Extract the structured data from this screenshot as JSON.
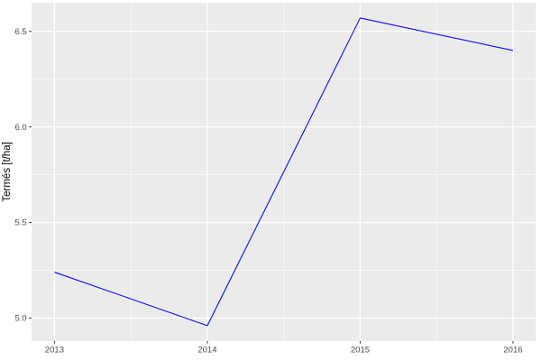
{
  "chart_data": {
    "type": "line",
    "style": "ggplot2",
    "title": "",
    "xlabel": "",
    "ylabel": "Termés [t/ha]",
    "x": [
      2013,
      2014,
      2015,
      2016
    ],
    "series": [
      {
        "name": "Termés",
        "values": [
          5.24,
          4.96,
          6.57,
          6.4
        ]
      }
    ],
    "xlim": [
      2012.85,
      2016.15
    ],
    "ylim": [
      4.88,
      6.65
    ],
    "xticks": {
      "values": [
        2013,
        2014,
        2015,
        2016
      ],
      "labels": [
        "2013",
        "2014",
        "2015",
        "2016"
      ]
    },
    "yticks": {
      "values": [
        5.0,
        5.5,
        6.0,
        6.5
      ],
      "labels": [
        "5.0",
        "5.5",
        "6.0",
        "6.5"
      ]
    },
    "grid": "major+minor",
    "legend_position": "none",
    "colors": {
      "line": "#0D0DF2",
      "panel_bg": "#EBEBEB",
      "grid_major": "#FFFFFF",
      "grid_minor": "#F7F7F7",
      "tick_label": "#4D4D4D",
      "axis_title": "#000000",
      "tick_mark": "#333333",
      "outer_bg": "#FFFFFF"
    }
  }
}
